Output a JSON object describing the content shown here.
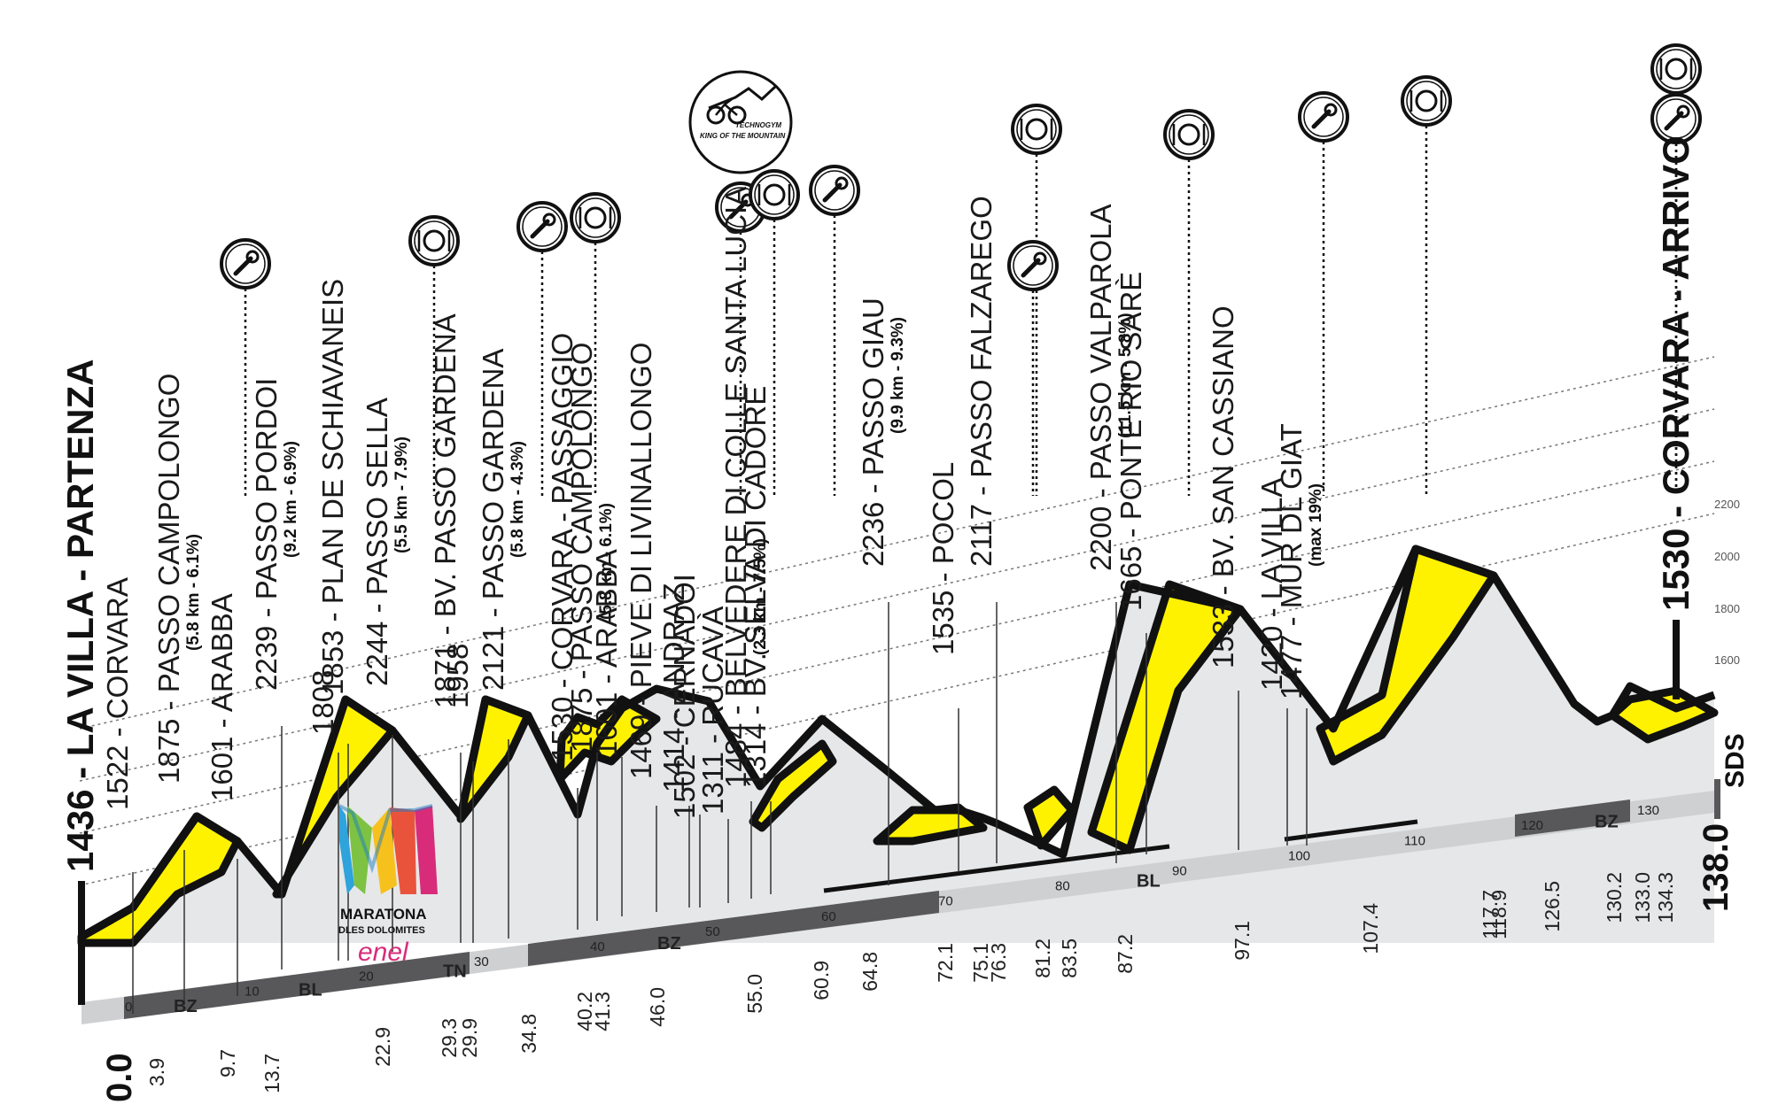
{
  "start": {
    "alt": "1436",
    "name": "LA VILLA - PARTENZA",
    "km": "0.0"
  },
  "finish": {
    "alt": "1530",
    "name": "CORVARA - ARRIVO",
    "km": "138.0",
    "sub": "(max 19%)"
  },
  "logo": {
    "line1": "MARATONA",
    "line2": "DLES DOLOMITES",
    "sponsor": "enel"
  },
  "kom": {
    "line1": "TECHNOGYM",
    "line2": "KING OF THE MOUNTAIN"
  },
  "sds": "SDS",
  "altitude_ticks": [
    "1600",
    "1800",
    "2000",
    "2200"
  ],
  "km_ticks": [
    "0",
    "10",
    "20",
    "30",
    "40",
    "50",
    "60",
    "70",
    "80",
    "90",
    "100",
    "110",
    "120",
    "130"
  ],
  "provinces": [
    "BZ",
    "BL",
    "TN",
    "BZ",
    "BL",
    "BZ"
  ],
  "waypoints": [
    {
      "km": "3.9",
      "label": "1522 - CORVARA",
      "sub": ""
    },
    {
      "km": "9.7",
      "label": "1875 - PASSO CAMPOLONGO",
      "sub": "(5.8 km - 6.1%)"
    },
    {
      "km": "13.7",
      "label": "1601 - ARABBA",
      "sub": ""
    },
    {
      "km": "22.9",
      "label": "2239 - PASSO PORDOI",
      "sub": "(9.2 km - 6.9%)"
    },
    {
      "km": "29.3",
      "label": "1808",
      "sub": ""
    },
    {
      "km": "29.9",
      "label": "1853 - PLAN DE SCHIAVANEIS",
      "sub": ""
    },
    {
      "km": "34.8",
      "label": "2244 - PASSO SELLA",
      "sub": "(5.5 km - 7.9%)"
    },
    {
      "km": "40.2",
      "label": "1871 - BV. PASSO GARDENA",
      "sub": ""
    },
    {
      "km": "41.3",
      "label": "1958",
      "sub": ""
    },
    {
      "km": "46.0",
      "label": "2121 - PASSO GARDENA",
      "sub": "(5.8 km - 4.3%)"
    },
    {
      "km": "55.0",
      "label": "1530 - CORVARA - PASSAGGIO",
      "sub": ""
    },
    {
      "km": "60.9",
      "label": "1875 - PASSO CAMPOLONGO",
      "sub": "(5.8 km - 6.1%)"
    },
    {
      "km": "64.8",
      "label": "1601 - ARABBA",
      "sub": ""
    },
    {
      "km": "72.1",
      "label": "1469 - PIEVE DI LIVINALLONGO",
      "sub": ""
    },
    {
      "km": "75.1",
      "label": "1414 - ANDRAZ",
      "sub": ""
    },
    {
      "km": "76.3",
      "label": "1502 - CERNADOI",
      "sub": ""
    },
    {
      "km": "81.2",
      "label": "1311 - RUCAVÀ",
      "sub": ""
    },
    {
      "km": "83.5",
      "label": "1484 - BELVEDERE DI COLLE SANTA LUCIA",
      "sub": "(2.3 km - 7.5%)"
    },
    {
      "km": "87.2",
      "label": "1314 - BV. SELVA DI CADORE",
      "sub": ""
    },
    {
      "km": "97.1",
      "label": "2236 - PASSO GIAU",
      "sub": "(9.9 km - 9.3%)"
    },
    {
      "km": "107.4",
      "label": "1535 - POCOL",
      "sub": ""
    },
    {
      "km": "117.7",
      "label": "2117 - PASSO FALZAREGO",
      "sub": ""
    },
    {
      "km": "118.9",
      "label": "2200 - PASSO VALPAROLA",
      "sub": "(11.5 km - 5.8%)"
    },
    {
      "km": "126.5",
      "label": "1665 - PONTE RIO SARÈ",
      "sub": ""
    },
    {
      "km": "130.2",
      "label": "1533 - BV. SAN CASSIANO",
      "sub": ""
    },
    {
      "km": "133.0",
      "label": "1420 - LA VILLA",
      "sub": ""
    },
    {
      "km": "134.3",
      "label": "1477 - MUR DL GIAT",
      "sub": "(max 19%)"
    }
  ],
  "stations": [
    {
      "type": "wrench-icon"
    },
    {
      "type": "food-icon"
    },
    {
      "type": "wrench-icon"
    },
    {
      "type": "food-icon"
    },
    {
      "type": "wrench-icon"
    },
    {
      "type": "food-icon"
    },
    {
      "type": "wrench-icon"
    },
    {
      "type": "food-icon"
    },
    {
      "type": "wrench-icon"
    },
    {
      "type": "food-icon"
    },
    {
      "type": "wrench-icon"
    },
    {
      "type": "food-icon"
    },
    {
      "type": "food-icon"
    },
    {
      "type": "wrench-icon"
    }
  ],
  "colors": {
    "climb": "#fff200",
    "ground": "#e6e7e8",
    "outline": "#111111",
    "road_light": "#cfd0d2",
    "road_dark": "#58585a"
  }
}
